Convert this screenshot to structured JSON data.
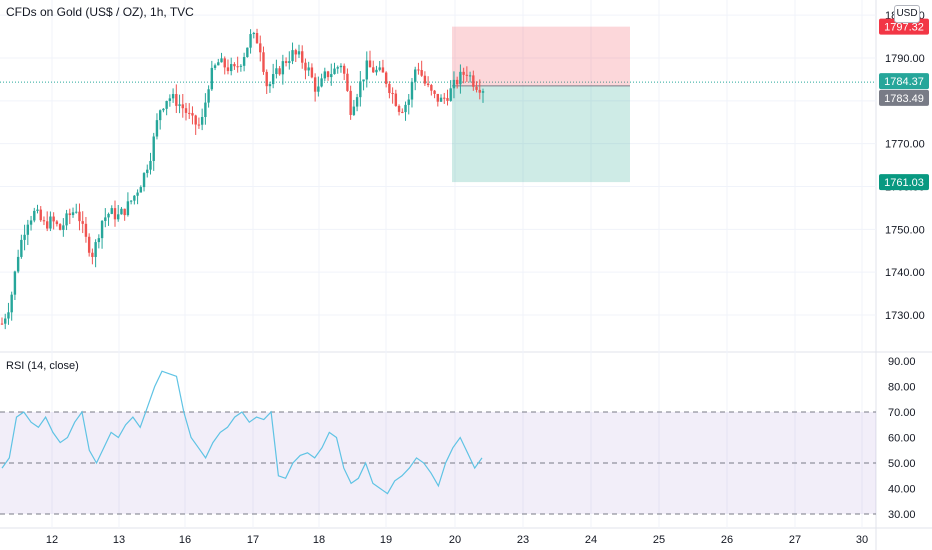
{
  "header": {
    "title": "CFDs on Gold (US$ / OZ), 1h, TVC",
    "currency": "USD"
  },
  "rsi_panel": {
    "title": "RSI (14, close)"
  },
  "chart_data": [
    {
      "type": "candlestick",
      "title": "CFDs on Gold (US$ / OZ), 1h, TVC",
      "x_ticks": [
        "12",
        "13",
        "16",
        "17",
        "18",
        "19",
        "20",
        "23",
        "24",
        "25",
        "26",
        "27",
        "30"
      ],
      "y_ticks": [
        1730,
        1740,
        1750,
        1760,
        1770,
        1780,
        1790,
        1800
      ],
      "y_tick_labels": [
        "1730.00",
        "1740.00",
        "1750.00",
        "1760.00",
        "1770.00",
        "1780.00",
        "1790.00",
        "1800.00"
      ],
      "ylim": [
        1725,
        1805
      ],
      "close_path": [
        1728,
        1733,
        1745,
        1752,
        1754,
        1751,
        1752,
        1750,
        1753,
        1755,
        1748,
        1744,
        1752,
        1754,
        1753,
        1755,
        1758,
        1762,
        1768,
        1778,
        1781,
        1780,
        1778,
        1775,
        1774,
        1785,
        1789,
        1788,
        1787,
        1790,
        1795,
        1794,
        1783,
        1786,
        1789,
        1791,
        1790,
        1787,
        1782,
        1786,
        1787,
        1789,
        1778,
        1783,
        1788,
        1787,
        1786,
        1782,
        1778,
        1780,
        1789,
        1784,
        1781,
        1780,
        1782,
        1785,
        1787,
        1784,
        1783
      ],
      "price_labels": [
        {
          "label": "1797.32",
          "role": "stop-loss",
          "color": "#f23645"
        },
        {
          "label": "1784.37",
          "role": "last-price",
          "color": "#26a69a"
        },
        {
          "label": "1783.49",
          "role": "entry",
          "color": "#787b86"
        },
        {
          "label": "1761.03",
          "role": "take-profit",
          "color": "#089981"
        }
      ],
      "position": {
        "side": "short",
        "entry": 1783.49,
        "stop": 1797.32,
        "target": 1761.03,
        "last": 1784.37
      },
      "up_color": "#26a69a",
      "down_color": "#ef5350"
    },
    {
      "type": "line",
      "title": "RSI (14, close)",
      "y_ticks": [
        30,
        40,
        50,
        60,
        70,
        80,
        90
      ],
      "y_tick_labels": [
        "30.00",
        "40.00",
        "50.00",
        "60.00",
        "70.00",
        "80.00",
        "90.00"
      ],
      "ylim": [
        28,
        92
      ],
      "bands": {
        "upper": 70,
        "middle": 50,
        "lower": 30
      },
      "values": [
        48,
        52,
        68,
        70,
        66,
        64,
        68,
        62,
        58,
        60,
        66,
        70,
        55,
        50,
        56,
        62,
        60,
        65,
        68,
        64,
        72,
        80,
        86,
        85,
        84,
        70,
        60,
        56,
        52,
        58,
        62,
        64,
        68,
        70,
        66,
        68,
        67,
        70,
        45,
        44,
        50,
        53,
        54,
        52,
        56,
        62,
        60,
        48,
        42,
        44,
        50,
        42,
        40,
        38,
        43,
        45,
        48,
        52,
        50,
        46,
        41,
        50,
        56,
        60,
        54,
        48,
        52
      ]
    }
  ]
}
